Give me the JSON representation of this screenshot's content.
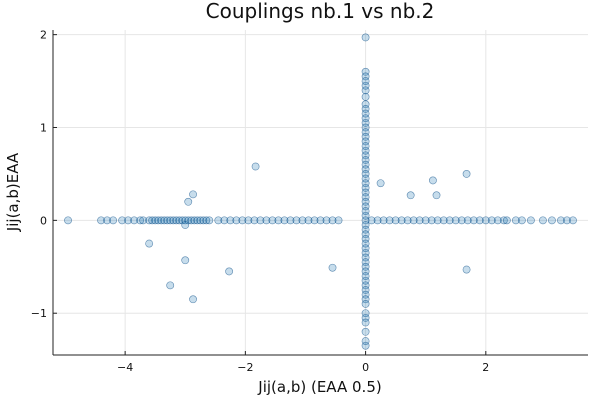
{
  "chart_data": {
    "type": "scatter",
    "title": "Couplings nb.1 vs nb.2",
    "xlabel": "Jij(a,b) (EAA 0.5)",
    "ylabel": "Jij(a,b)EAA",
    "xlim": [
      -5.2,
      3.7
    ],
    "ylim": [
      -1.45,
      2.05
    ],
    "xticks": [
      -4,
      -2,
      0,
      2
    ],
    "yticks": [
      -1,
      0,
      1,
      2
    ],
    "grid": true,
    "legend": "none",
    "marker_color": "#1f77b4",
    "marker_opacity": 0.25,
    "points": [
      [
        -4.95,
        0
      ],
      [
        -4.4,
        0
      ],
      [
        -4.3,
        0
      ],
      [
        -4.2,
        0
      ],
      [
        -4.05,
        0
      ],
      [
        -3.95,
        0
      ],
      [
        -3.85,
        0
      ],
      [
        -3.75,
        0
      ],
      [
        -3.7,
        0
      ],
      [
        -3.6,
        0
      ],
      [
        -3.55,
        0
      ],
      [
        -3.5,
        0
      ],
      [
        -3.45,
        0
      ],
      [
        -3.4,
        0
      ],
      [
        -3.35,
        0
      ],
      [
        -3.3,
        0
      ],
      [
        -3.25,
        0
      ],
      [
        -3.2,
        0
      ],
      [
        -3.15,
        0
      ],
      [
        -3.1,
        0
      ],
      [
        -3.05,
        0
      ],
      [
        -3.0,
        0
      ],
      [
        -2.95,
        0
      ],
      [
        -2.9,
        0
      ],
      [
        -2.85,
        0
      ],
      [
        -2.8,
        0
      ],
      [
        -2.75,
        0
      ],
      [
        -2.7,
        0
      ],
      [
        -2.65,
        0
      ],
      [
        -2.6,
        0
      ],
      [
        -2.45,
        0
      ],
      [
        -2.35,
        0
      ],
      [
        -2.25,
        0
      ],
      [
        -2.15,
        0
      ],
      [
        -2.05,
        0
      ],
      [
        -1.95,
        0
      ],
      [
        -1.85,
        0
      ],
      [
        -1.75,
        0
      ],
      [
        -1.65,
        0
      ],
      [
        -1.55,
        0
      ],
      [
        -1.45,
        0
      ],
      [
        -1.35,
        0
      ],
      [
        -1.25,
        0
      ],
      [
        -1.15,
        0
      ],
      [
        -1.05,
        0
      ],
      [
        -0.95,
        0
      ],
      [
        -0.85,
        0
      ],
      [
        -0.75,
        0
      ],
      [
        -0.65,
        0
      ],
      [
        -0.55,
        0
      ],
      [
        -0.45,
        0
      ],
      [
        -3.6,
        -0.25
      ],
      [
        -3.0,
        -0.05
      ],
      [
        -2.95,
        0.2
      ],
      [
        -2.87,
        0.28
      ],
      [
        -3.25,
        -0.7
      ],
      [
        -3.0,
        -0.43
      ],
      [
        -2.87,
        -0.85
      ],
      [
        -2.27,
        -0.55
      ],
      [
        -1.83,
        0.58
      ],
      [
        -0.55,
        -0.51
      ],
      [
        0,
        1.97
      ],
      [
        0,
        1.6
      ],
      [
        0,
        1.55
      ],
      [
        0,
        1.5
      ],
      [
        0,
        1.45
      ],
      [
        0,
        1.4
      ],
      [
        0,
        1.33
      ],
      [
        0,
        1.25
      ],
      [
        0,
        1.2
      ],
      [
        0,
        1.15
      ],
      [
        0,
        1.1
      ],
      [
        0,
        1.05
      ],
      [
        0,
        1.0
      ],
      [
        0,
        0.95
      ],
      [
        0,
        0.9
      ],
      [
        0,
        0.85
      ],
      [
        0,
        0.8
      ],
      [
        0,
        0.75
      ],
      [
        0,
        0.7
      ],
      [
        0,
        0.65
      ],
      [
        0,
        0.6
      ],
      [
        0,
        0.55
      ],
      [
        0,
        0.5
      ],
      [
        0,
        0.45
      ],
      [
        0,
        0.4
      ],
      [
        0,
        0.35
      ],
      [
        0,
        0.3
      ],
      [
        0,
        0.25
      ],
      [
        0,
        0.2
      ],
      [
        0,
        0.15
      ],
      [
        0,
        0.1
      ],
      [
        0,
        0.05
      ],
      [
        0,
        0
      ],
      [
        0,
        -0.05
      ],
      [
        0,
        -0.1
      ],
      [
        0,
        -0.15
      ],
      [
        0,
        -0.2
      ],
      [
        0,
        -0.25
      ],
      [
        0,
        -0.3
      ],
      [
        0,
        -0.35
      ],
      [
        0,
        -0.4
      ],
      [
        0,
        -0.45
      ],
      [
        0,
        -0.5
      ],
      [
        0,
        -0.55
      ],
      [
        0,
        -0.6
      ],
      [
        0,
        -0.65
      ],
      [
        0,
        -0.7
      ],
      [
        0,
        -0.75
      ],
      [
        0,
        -0.8
      ],
      [
        0,
        -0.85
      ],
      [
        0,
        -0.9
      ],
      [
        0,
        -1.0
      ],
      [
        0,
        -1.05
      ],
      [
        0,
        -1.1
      ],
      [
        0,
        -1.2
      ],
      [
        0,
        -1.3
      ],
      [
        0,
        -1.35
      ],
      [
        0.1,
        0
      ],
      [
        0.2,
        0
      ],
      [
        0.3,
        0
      ],
      [
        0.4,
        0
      ],
      [
        0.5,
        0
      ],
      [
        0.6,
        0
      ],
      [
        0.7,
        0
      ],
      [
        0.8,
        0
      ],
      [
        0.9,
        0
      ],
      [
        1.0,
        0
      ],
      [
        1.1,
        0
      ],
      [
        1.2,
        0
      ],
      [
        1.3,
        0
      ],
      [
        1.4,
        0
      ],
      [
        1.5,
        0
      ],
      [
        1.6,
        0
      ],
      [
        1.7,
        0
      ],
      [
        1.8,
        0
      ],
      [
        1.9,
        0
      ],
      [
        2.0,
        0
      ],
      [
        2.1,
        0
      ],
      [
        2.2,
        0
      ],
      [
        2.3,
        0
      ],
      [
        2.35,
        0
      ],
      [
        2.5,
        0
      ],
      [
        2.6,
        0
      ],
      [
        2.75,
        0
      ],
      [
        2.95,
        0
      ],
      [
        3.1,
        0
      ],
      [
        3.25,
        0
      ],
      [
        3.35,
        0
      ],
      [
        3.45,
        0
      ],
      [
        0.25,
        0.4
      ],
      [
        0.75,
        0.27
      ],
      [
        1.12,
        0.43
      ],
      [
        1.18,
        0.27
      ],
      [
        1.68,
        0.5
      ],
      [
        1.68,
        -0.53
      ]
    ]
  }
}
